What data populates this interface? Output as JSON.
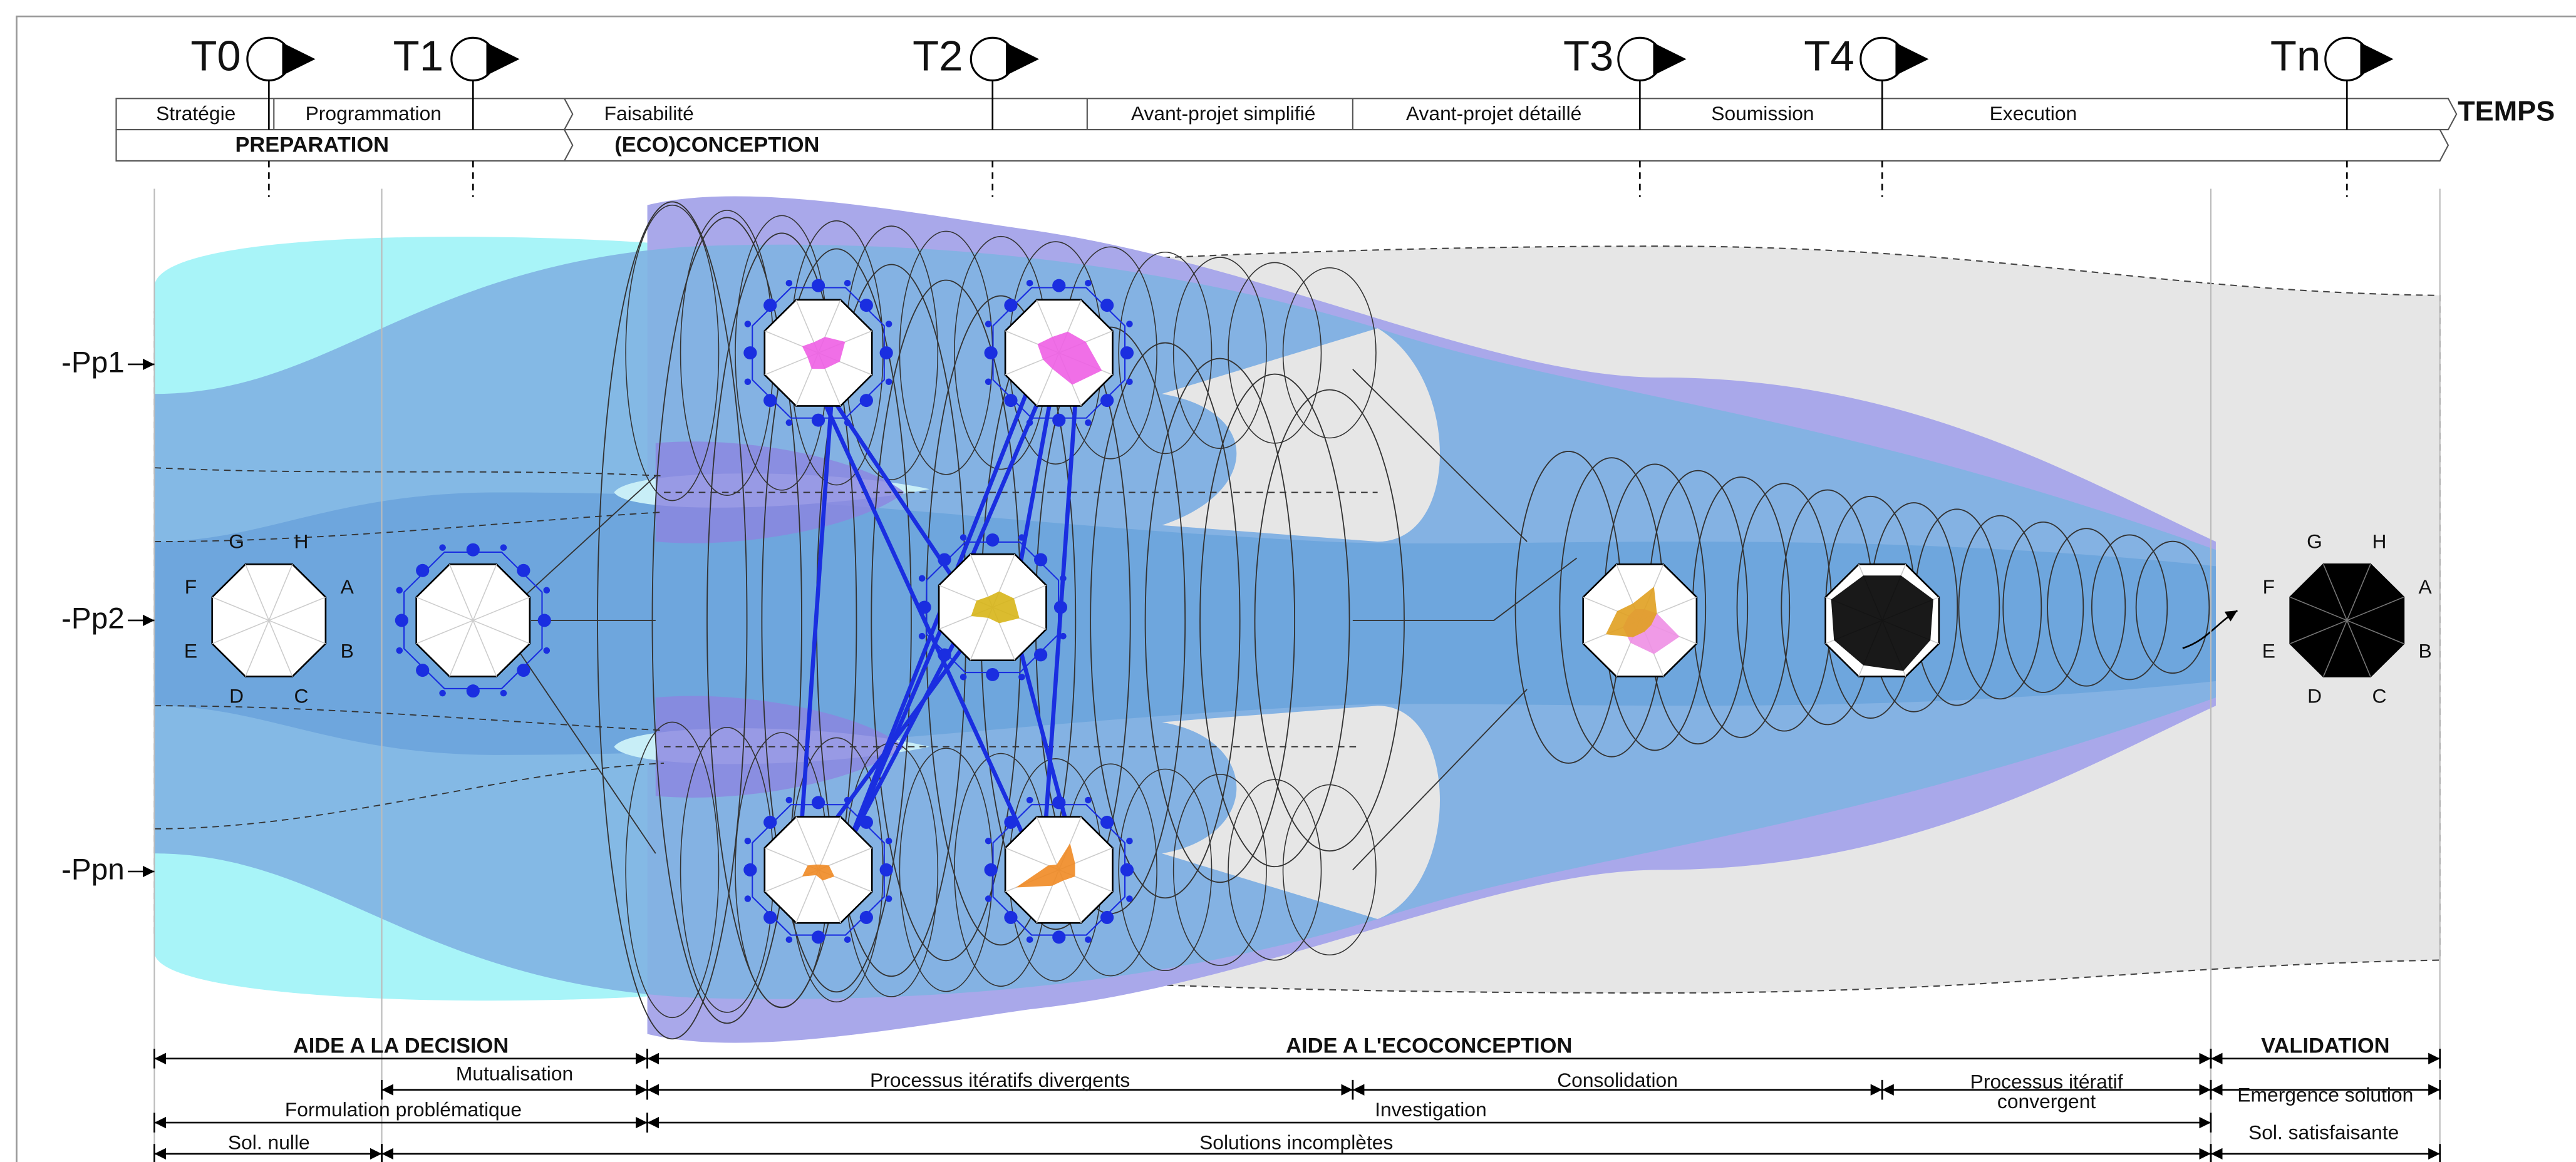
{
  "milestones": [
    "T0",
    "T1",
    "T2",
    "T3",
    "T4",
    "Tn"
  ],
  "time_label": "TEMPS",
  "phases_top": [
    "Stratégie",
    "Programmation",
    "Faisabilité",
    "Avant-projet simplifié",
    "Avant-projet détaillé",
    "Soumission",
    "Execution"
  ],
  "phases_main": [
    "PREPARATION",
    "(ECO)CONCEPTION"
  ],
  "levels": [
    "-Pp1",
    "-Pp2",
    "-Ppn"
  ],
  "criteria": [
    "A",
    "B",
    "C",
    "D",
    "E",
    "F",
    "G",
    "H"
  ],
  "bottom": {
    "row1": [
      "AIDE A LA DECISION",
      "AIDE A L'ECOCONCEPTION",
      "VALIDATION"
    ],
    "row2": [
      "Mutualisation",
      "Processus itératifs divergents",
      "Consolidation",
      [
        "Processus itératif",
        "convergent"
      ],
      "Emergence solution"
    ],
    "row3": [
      "Formulation problématique",
      "Investigation"
    ],
    "row4": [
      "Sol. nulle",
      "Solutions incomplètes",
      "Sol. satisfaisante"
    ]
  }
}
